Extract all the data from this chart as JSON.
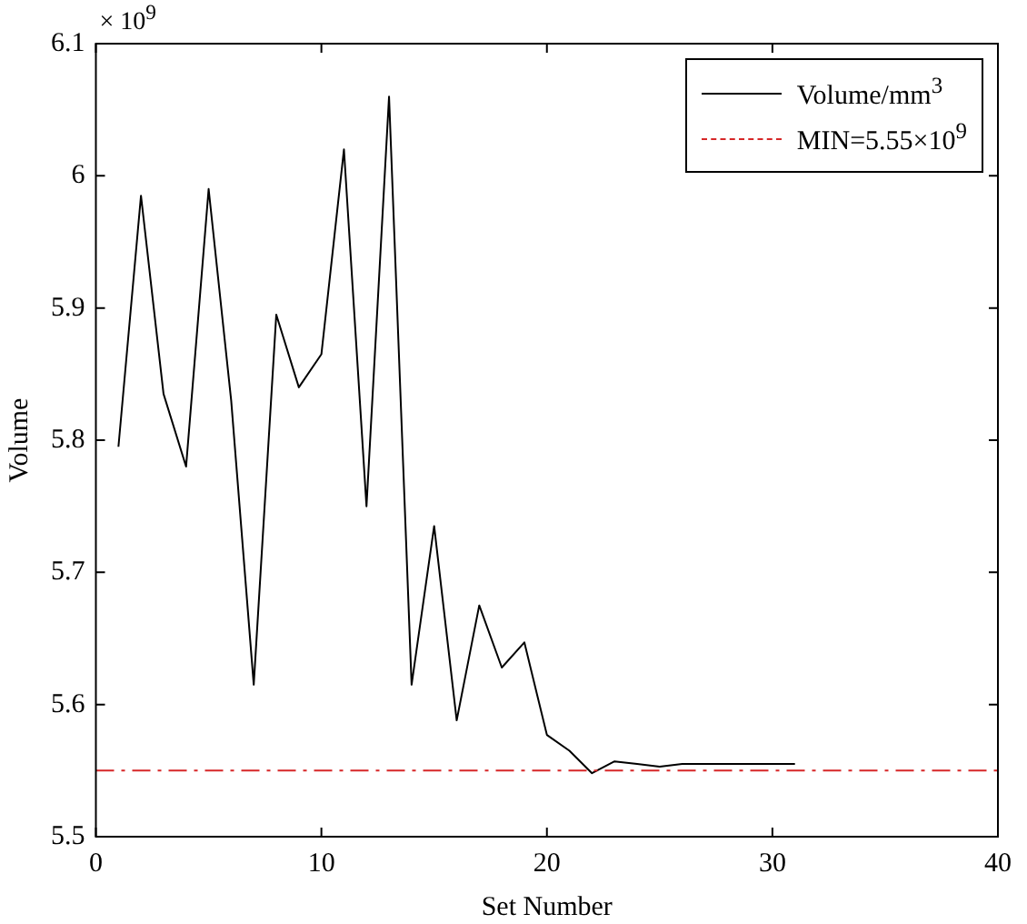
{
  "chart_data": {
    "type": "line",
    "xlabel": "Set Number",
    "ylabel": "Volume",
    "annotations": [
      "× 10$^{9}$"
    ],
    "x": [
      1,
      2,
      3,
      4,
      5,
      6,
      7,
      8,
      9,
      10,
      11,
      12,
      13,
      14,
      15,
      16,
      17,
      18,
      19,
      20,
      21,
      22,
      23,
      24,
      25,
      26,
      27,
      28,
      29,
      30,
      31
    ],
    "series": [
      {
        "name": "Volume/mm$^{3}$",
        "color": "#000000",
        "values": [
          5.795,
          5.985,
          5.835,
          5.78,
          5.99,
          5.83,
          5.615,
          5.895,
          5.84,
          5.865,
          6.02,
          5.75,
          6.06,
          5.615,
          5.735,
          5.588,
          5.675,
          5.628,
          5.647,
          5.577,
          5.565,
          5.548,
          5.557,
          5.555,
          5.553,
          5.555,
          5.555,
          5.555,
          5.555,
          5.555,
          5.555
        ]
      }
    ],
    "ref_lines": [
      {
        "axis": "y",
        "value": 5.55,
        "label": "MIN=5.55×10$^{9}$",
        "color": "#d62728",
        "line_style": "dashdot"
      }
    ],
    "xlim": [
      0,
      40
    ],
    "xticks": [
      0,
      10,
      20,
      30,
      40
    ],
    "ylim": [
      5.5,
      6.1
    ],
    "yticks": [
      5.5,
      5.6,
      5.7,
      5.8,
      5.9,
      6,
      6.1
    ],
    "grid": false,
    "legend": "top right",
    "marker": "none",
    "line_style": "solid"
  }
}
